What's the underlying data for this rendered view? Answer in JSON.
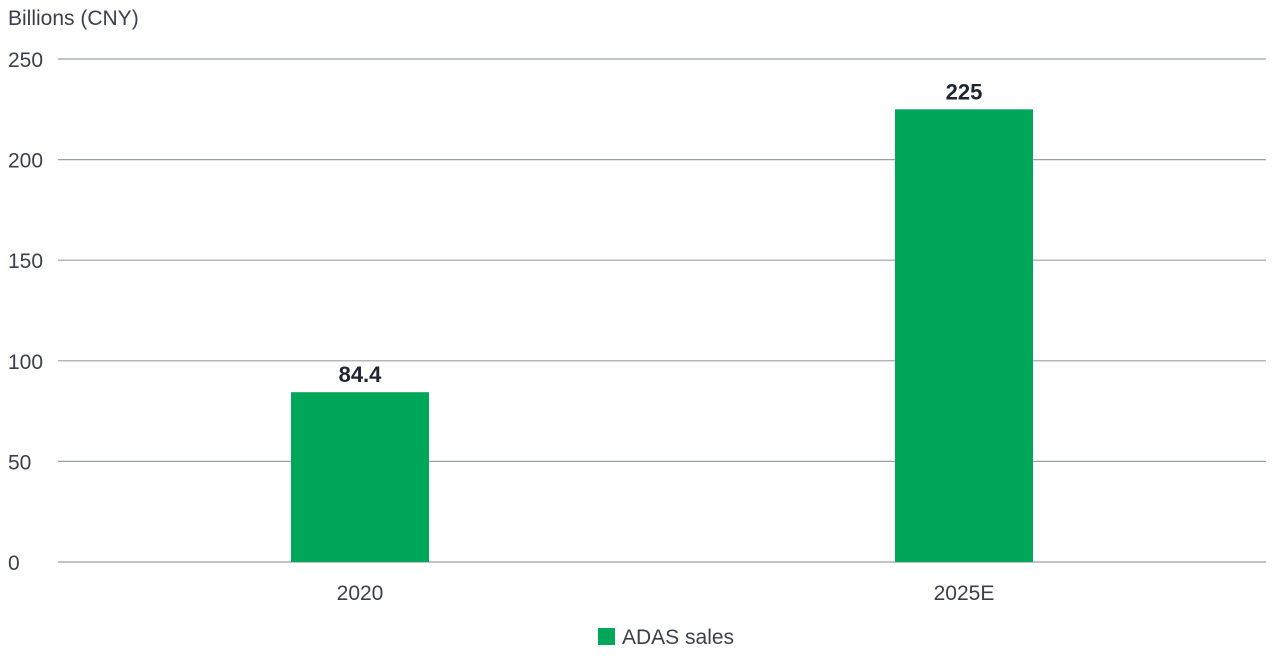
{
  "chart_data": {
    "type": "bar",
    "title": "",
    "ylabel": "Billions (CNY)",
    "xlabel": "",
    "categories": [
      "2020",
      "2025E"
    ],
    "series": [
      {
        "name": "ADAS sales",
        "values": [
          84.4,
          225
        ],
        "color": "#00a65a"
      }
    ],
    "data_labels": [
      "84.4",
      "225"
    ],
    "ylim": [
      0,
      250
    ],
    "yticks": [
      0,
      50,
      100,
      150,
      200,
      250
    ],
    "ytick_labels": [
      "0",
      "50",
      "100",
      "150",
      "200",
      "250"
    ],
    "grid": true,
    "legend": "bottom-center"
  }
}
